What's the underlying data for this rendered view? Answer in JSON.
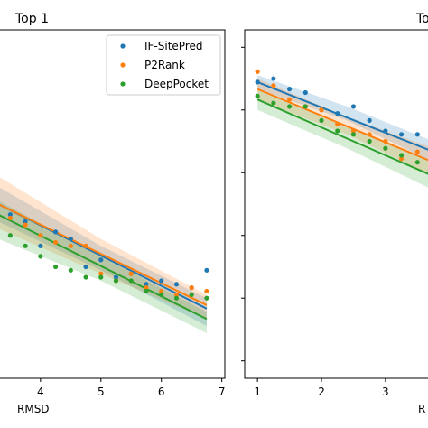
{
  "chart_data": [
    {
      "type": "scatter",
      "title": "Top 1",
      "xlabel": "RMSD",
      "ylabel": "",
      "xlim": [
        3.3,
        7.05
      ],
      "ylim": [
        0,
        1
      ],
      "xticks": [
        4,
        5,
        6,
        7
      ],
      "grid": false,
      "legend": "top-right",
      "series": [
        {
          "name": "IF-SitePred",
          "color": "#1f77b4",
          "x": [
            3.5,
            3.75,
            4.0,
            4.25,
            4.5,
            4.75,
            5.0,
            5.25,
            5.5,
            5.75,
            6.0,
            6.25,
            6.5,
            6.75
          ],
          "y": [
            0.47,
            0.45,
            0.38,
            0.42,
            0.4,
            0.32,
            0.34,
            0.29,
            0.3,
            0.27,
            0.28,
            0.27,
            0.26,
            0.31
          ],
          "fit": [
            [
              3.3,
              0.5
            ],
            [
              6.75,
              0.2
            ]
          ],
          "band": [
            [
              3.3,
              0.55,
              0.45
            ],
            [
              5.0,
              0.38,
              0.31
            ],
            [
              6.75,
              0.23,
              0.15
            ]
          ]
        },
        {
          "name": "P2Rank",
          "color": "#ff7f0e",
          "x": [
            3.5,
            3.75,
            4.0,
            4.25,
            4.5,
            4.75,
            5.0,
            5.25,
            5.5,
            5.75,
            6.0,
            6.25,
            6.5,
            6.75
          ],
          "y": [
            0.46,
            0.44,
            0.41,
            0.39,
            0.38,
            0.38,
            0.3,
            0.28,
            0.3,
            0.26,
            0.25,
            0.24,
            0.26,
            0.25
          ],
          "fit": [
            [
              3.3,
              0.5
            ],
            [
              6.75,
              0.21
            ]
          ],
          "band": [
            [
              3.3,
              0.58,
              0.43
            ],
            [
              5.0,
              0.4,
              0.3
            ],
            [
              6.75,
              0.24,
              0.17
            ]
          ]
        },
        {
          "name": "DeepPocket",
          "color": "#2ca02c",
          "x": [
            3.5,
            3.75,
            4.0,
            4.25,
            4.5,
            4.75,
            5.0,
            5.25,
            5.5,
            5.75,
            6.0,
            6.25,
            6.5,
            6.75
          ],
          "y": [
            0.41,
            0.38,
            0.35,
            0.32,
            0.31,
            0.29,
            0.29,
            0.28,
            0.28,
            0.25,
            0.24,
            0.23,
            0.24,
            0.23
          ],
          "fit": [
            [
              3.3,
              0.47
            ],
            [
              6.75,
              0.17
            ]
          ],
          "band": [
            [
              3.3,
              0.51,
              0.4
            ],
            [
              5.0,
              0.35,
              0.28
            ],
            [
              6.75,
              0.19,
              0.13
            ]
          ]
        }
      ]
    },
    {
      "type": "scatter",
      "title": "Top",
      "xlabel": "R",
      "ylabel": "",
      "xlim": [
        0.8,
        3.75
      ],
      "ylim": [
        0,
        1
      ],
      "xticks": [
        1,
        2,
        3
      ],
      "grid": false,
      "legend": "none",
      "series": [
        {
          "name": "IF-SitePred",
          "color": "#1f77b4",
          "x": [
            1.0,
            1.25,
            1.5,
            1.75,
            2.0,
            2.25,
            2.5,
            2.75,
            3.0,
            3.25,
            3.5
          ],
          "y": [
            0.85,
            0.86,
            0.83,
            0.82,
            0.77,
            0.76,
            0.78,
            0.74,
            0.71,
            0.7,
            0.7
          ],
          "fit": [
            [
              1.0,
              0.85
            ],
            [
              3.75,
              0.65
            ]
          ],
          "band": [
            [
              1.0,
              0.87,
              0.83
            ],
            [
              2.4,
              0.78,
              0.74
            ],
            [
              3.75,
              0.68,
              0.62
            ]
          ]
        },
        {
          "name": "P2Rank",
          "color": "#ff7f0e",
          "x": [
            1.0,
            1.25,
            1.5,
            1.75,
            2.0,
            2.25,
            2.5,
            2.75,
            3.0,
            3.25,
            3.5
          ],
          "y": [
            0.88,
            0.84,
            0.8,
            0.78,
            0.77,
            0.73,
            0.71,
            0.7,
            0.68,
            0.63,
            0.65
          ],
          "fit": [
            [
              1.0,
              0.83
            ],
            [
              3.75,
              0.62
            ]
          ],
          "band": [
            [
              1.0,
              0.86,
              0.8
            ],
            [
              2.4,
              0.75,
              0.7
            ],
            [
              3.75,
              0.66,
              0.58
            ]
          ]
        },
        {
          "name": "DeepPocket",
          "color": "#2ca02c",
          "x": [
            1.0,
            1.25,
            1.5,
            1.75,
            2.0,
            2.25,
            2.5,
            2.75,
            3.0,
            3.25,
            3.5
          ],
          "y": [
            0.81,
            0.79,
            0.78,
            0.78,
            0.74,
            0.71,
            0.7,
            0.68,
            0.66,
            0.64,
            0.62
          ],
          "fit": [
            [
              1.0,
              0.8
            ],
            [
              3.75,
              0.58
            ]
          ],
          "band": [
            [
              1.0,
              0.83,
              0.77
            ],
            [
              2.4,
              0.72,
              0.66
            ],
            [
              3.75,
              0.62,
              0.54
            ]
          ]
        }
      ]
    }
  ]
}
